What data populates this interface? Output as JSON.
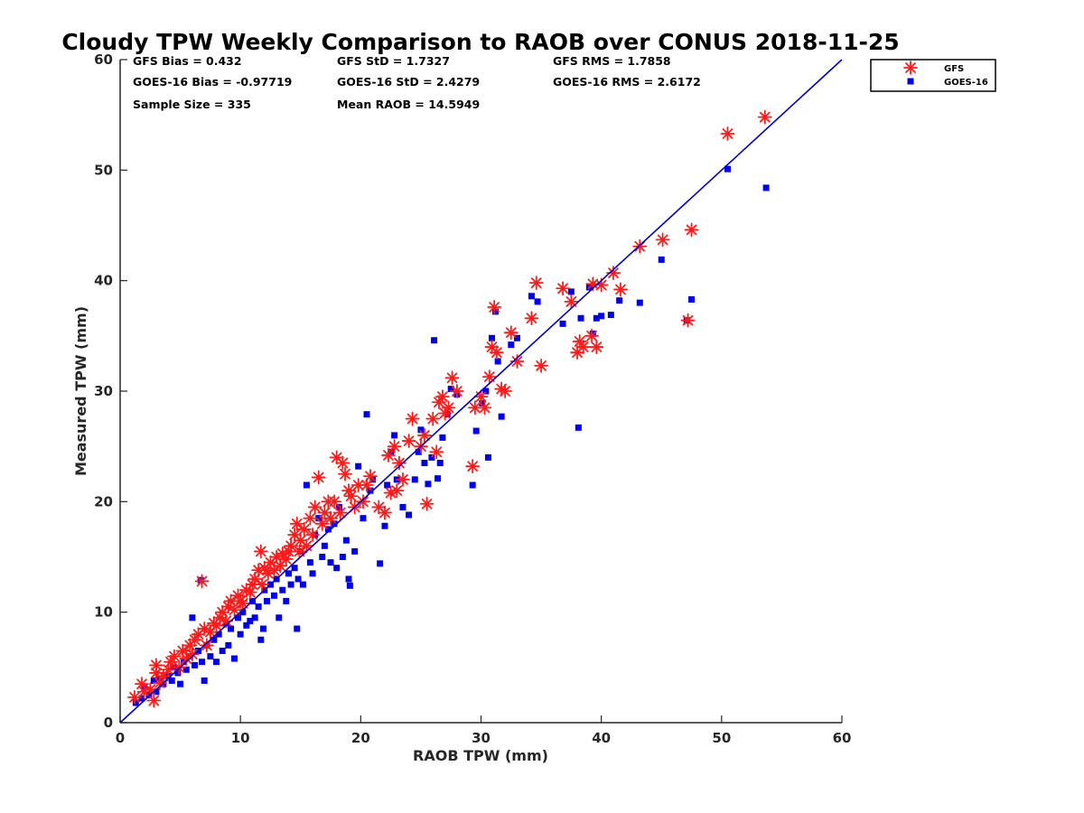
{
  "chart_data": {
    "type": "scatter",
    "title": "Cloudy TPW Weekly Comparison to RAOB over CONUS 2018-11-25",
    "xlabel": "RAOB TPW (mm)",
    "ylabel": "Measured TPW (mm)",
    "xlim": [
      0,
      60
    ],
    "ylim": [
      0,
      60
    ],
    "xticks": [
      "0",
      "10",
      "20",
      "30",
      "40",
      "50",
      "60"
    ],
    "yticks": [
      "0",
      "10",
      "20",
      "30",
      "40",
      "50",
      "60"
    ],
    "grid": false,
    "legend_position": "top-right-outside",
    "stats": {
      "gfs_bias": "GFS Bias = 0.432",
      "gfs_std": "GFS StD = 1.7327",
      "gfs_rms": "GFS RMS = 1.7858",
      "goes_bias": "GOES-16 Bias = -0.97719",
      "goes_std": "GOES-16 StD = 2.4279",
      "goes_rms": "GOES-16 RMS = 2.6172",
      "sample_size": "Sample Size = 335",
      "mean_raob": "Mean RAOB = 14.5949"
    },
    "reference_line": {
      "from": [
        0,
        0
      ],
      "to": [
        60,
        60
      ],
      "color": "#0000cc"
    },
    "series": [
      {
        "name": "GFS",
        "marker": "asterisk",
        "color": "#ff1a1a",
        "points": [
          [
            1.2,
            2.3
          ],
          [
            1.8,
            3.5
          ],
          [
            2.0,
            2.8
          ],
          [
            2.5,
            3.0
          ],
          [
            2.8,
            2.0
          ],
          [
            3.0,
            4.5
          ],
          [
            3.0,
            5.2
          ],
          [
            3.3,
            3.6
          ],
          [
            3.6,
            4.2
          ],
          [
            4.0,
            4.8
          ],
          [
            4.2,
            5.5
          ],
          [
            4.5,
            6.0
          ],
          [
            4.9,
            5.0
          ],
          [
            5.2,
            6.5
          ],
          [
            5.5,
            5.8
          ],
          [
            5.8,
            7.0
          ],
          [
            6.0,
            6.2
          ],
          [
            6.2,
            7.5
          ],
          [
            6.5,
            8.0
          ],
          [
            6.8,
            12.8
          ],
          [
            7.0,
            8.5
          ],
          [
            7.2,
            7.0
          ],
          [
            7.5,
            8.2
          ],
          [
            7.8,
            9.0
          ],
          [
            8.0,
            8.8
          ],
          [
            8.3,
            9.5
          ],
          [
            8.5,
            10.0
          ],
          [
            8.8,
            9.2
          ],
          [
            9.0,
            10.5
          ],
          [
            9.2,
            11.0
          ],
          [
            9.5,
            10.2
          ],
          [
            9.8,
            11.5
          ],
          [
            10.0,
            11.0
          ],
          [
            10.2,
            10.8
          ],
          [
            10.5,
            12.0
          ],
          [
            10.8,
            11.8
          ],
          [
            11.0,
            12.5
          ],
          [
            11.2,
            13.0
          ],
          [
            11.5,
            13.8
          ],
          [
            11.7,
            15.5
          ],
          [
            11.8,
            12.5
          ],
          [
            12.0,
            14.0
          ],
          [
            12.3,
            13.5
          ],
          [
            12.5,
            14.5
          ],
          [
            12.8,
            13.8
          ],
          [
            13.0,
            15.0
          ],
          [
            13.3,
            14.2
          ],
          [
            13.5,
            15.3
          ],
          [
            13.8,
            14.8
          ],
          [
            14.0,
            15.5
          ],
          [
            14.2,
            16.0
          ],
          [
            14.5,
            17.0
          ],
          [
            14.7,
            18.0
          ],
          [
            14.9,
            15.5
          ],
          [
            15.0,
            16.5
          ],
          [
            15.3,
            17.5
          ],
          [
            15.5,
            16.0
          ],
          [
            15.8,
            18.5
          ],
          [
            16.0,
            17.0
          ],
          [
            16.2,
            19.5
          ],
          [
            16.5,
            22.2
          ],
          [
            16.8,
            18.0
          ],
          [
            17.0,
            19.0
          ],
          [
            17.3,
            20.0
          ],
          [
            17.5,
            18.5
          ],
          [
            17.8,
            20.0
          ],
          [
            18.0,
            24.0
          ],
          [
            18.3,
            19.0
          ],
          [
            18.5,
            23.5
          ],
          [
            18.7,
            22.5
          ],
          [
            19.0,
            21.0
          ],
          [
            19.2,
            20.5
          ],
          [
            19.5,
            19.5
          ],
          [
            19.8,
            21.5
          ],
          [
            20.2,
            20.0
          ],
          [
            20.5,
            21.5
          ],
          [
            20.8,
            22.3
          ],
          [
            21.5,
            19.5
          ],
          [
            22.0,
            19.0
          ],
          [
            22.3,
            24.2
          ],
          [
            22.5,
            20.8
          ],
          [
            22.8,
            25.0
          ],
          [
            23.0,
            21.0
          ],
          [
            23.2,
            23.5
          ],
          [
            23.5,
            22.0
          ],
          [
            24.0,
            25.5
          ],
          [
            24.3,
            27.5
          ],
          [
            25.0,
            25.0
          ],
          [
            25.3,
            26.0
          ],
          [
            25.5,
            19.8
          ],
          [
            26.0,
            27.5
          ],
          [
            26.3,
            24.5
          ],
          [
            26.5,
            29.0
          ],
          [
            26.8,
            29.5
          ],
          [
            27.0,
            28.0
          ],
          [
            27.3,
            28.5
          ],
          [
            27.6,
            31.2
          ],
          [
            28.0,
            30.0
          ],
          [
            29.3,
            23.2
          ],
          [
            29.5,
            28.5
          ],
          [
            30.0,
            29.5
          ],
          [
            30.3,
            28.5
          ],
          [
            30.7,
            31.3
          ],
          [
            30.9,
            34.0
          ],
          [
            31.1,
            37.6
          ],
          [
            31.3,
            33.5
          ],
          [
            31.7,
            30.2
          ],
          [
            32.0,
            30.0
          ],
          [
            32.5,
            35.3
          ],
          [
            33.0,
            32.7
          ],
          [
            34.2,
            36.6
          ],
          [
            34.6,
            39.8
          ],
          [
            35.0,
            32.3
          ],
          [
            36.8,
            39.3
          ],
          [
            37.5,
            38.1
          ],
          [
            38.0,
            33.5
          ],
          [
            38.2,
            34.5
          ],
          [
            38.5,
            34.0
          ],
          [
            39.2,
            35.0
          ],
          [
            39.6,
            34.0
          ],
          [
            39.3,
            39.7
          ],
          [
            40.0,
            39.6
          ],
          [
            41.0,
            40.7
          ],
          [
            41.6,
            39.2
          ],
          [
            43.2,
            43.1
          ],
          [
            45.1,
            43.7
          ],
          [
            47.2,
            36.4
          ],
          [
            47.5,
            44.6
          ],
          [
            50.5,
            53.3
          ],
          [
            53.6,
            54.8
          ]
        ]
      },
      {
        "name": "GOES-16",
        "marker": "square",
        "color": "#0000ee",
        "points": [
          [
            1.3,
            1.8
          ],
          [
            1.8,
            2.2
          ],
          [
            2.0,
            3.2
          ],
          [
            2.4,
            2.5
          ],
          [
            2.8,
            3.8
          ],
          [
            3.0,
            2.8
          ],
          [
            3.3,
            4.0
          ],
          [
            3.6,
            3.5
          ],
          [
            4.0,
            4.2
          ],
          [
            4.3,
            3.8
          ],
          [
            4.5,
            5.0
          ],
          [
            4.8,
            4.5
          ],
          [
            5.0,
            3.5
          ],
          [
            5.3,
            5.5
          ],
          [
            5.5,
            4.8
          ],
          [
            5.8,
            6.0
          ],
          [
            6.0,
            9.5
          ],
          [
            6.2,
            5.2
          ],
          [
            6.5,
            6.5
          ],
          [
            6.7,
            12.9
          ],
          [
            6.8,
            5.5
          ],
          [
            7.0,
            3.8
          ],
          [
            7.2,
            7.0
          ],
          [
            7.5,
            6.0
          ],
          [
            7.8,
            7.5
          ],
          [
            8.0,
            5.5
          ],
          [
            8.2,
            8.0
          ],
          [
            8.5,
            6.5
          ],
          [
            8.8,
            9.0
          ],
          [
            9.0,
            7.0
          ],
          [
            9.2,
            8.5
          ],
          [
            9.5,
            5.8
          ],
          [
            9.8,
            9.5
          ],
          [
            10.0,
            8.0
          ],
          [
            10.2,
            10.0
          ],
          [
            10.5,
            8.8
          ],
          [
            10.8,
            9.2
          ],
          [
            11.0,
            11.0
          ],
          [
            11.2,
            9.5
          ],
          [
            11.5,
            10.5
          ],
          [
            11.7,
            7.5
          ],
          [
            11.9,
            8.5
          ],
          [
            12.0,
            12.0
          ],
          [
            12.2,
            11.0
          ],
          [
            12.5,
            12.5
          ],
          [
            12.8,
            11.5
          ],
          [
            13.0,
            13.0
          ],
          [
            13.2,
            9.5
          ],
          [
            13.5,
            12.0
          ],
          [
            13.8,
            11.0
          ],
          [
            14.0,
            13.5
          ],
          [
            14.2,
            12.5
          ],
          [
            14.5,
            14.0
          ],
          [
            14.7,
            8.5
          ],
          [
            14.8,
            13.0
          ],
          [
            15.0,
            15.5
          ],
          [
            15.2,
            12.5
          ],
          [
            15.5,
            21.5
          ],
          [
            15.8,
            14.5
          ],
          [
            16.0,
            13.5
          ],
          [
            16.2,
            17.0
          ],
          [
            16.5,
            18.5
          ],
          [
            16.8,
            15.0
          ],
          [
            17.0,
            16.0
          ],
          [
            17.3,
            17.5
          ],
          [
            17.5,
            14.5
          ],
          [
            17.8,
            18.0
          ],
          [
            18.0,
            14.0
          ],
          [
            18.2,
            19.5
          ],
          [
            18.5,
            15.0
          ],
          [
            18.8,
            16.5
          ],
          [
            19.0,
            13.0
          ],
          [
            19.1,
            12.4
          ],
          [
            19.5,
            15.5
          ],
          [
            19.8,
            23.2
          ],
          [
            20.2,
            18.5
          ],
          [
            20.5,
            27.9
          ],
          [
            20.8,
            21.0
          ],
          [
            21.0,
            22.0
          ],
          [
            21.6,
            14.4
          ],
          [
            22.0,
            17.8
          ],
          [
            22.2,
            21.5
          ],
          [
            22.5,
            24.5
          ],
          [
            22.8,
            26.0
          ],
          [
            23.0,
            22.0
          ],
          [
            23.5,
            19.5
          ],
          [
            24.0,
            18.8
          ],
          [
            24.5,
            22.0
          ],
          [
            24.8,
            24.5
          ],
          [
            25.0,
            26.5
          ],
          [
            25.3,
            23.5
          ],
          [
            25.6,
            21.6
          ],
          [
            25.9,
            24.0
          ],
          [
            26.1,
            34.6
          ],
          [
            26.4,
            22.1
          ],
          [
            26.6,
            23.5
          ],
          [
            26.8,
            25.8
          ],
          [
            27.2,
            27.9
          ],
          [
            27.5,
            30.2
          ],
          [
            28.0,
            29.7
          ],
          [
            29.3,
            21.5
          ],
          [
            29.6,
            26.4
          ],
          [
            30.1,
            28.9
          ],
          [
            30.4,
            30.0
          ],
          [
            30.6,
            24.0
          ],
          [
            30.9,
            34.8
          ],
          [
            31.2,
            37.2
          ],
          [
            31.4,
            32.7
          ],
          [
            31.7,
            27.7
          ],
          [
            32.5,
            34.2
          ],
          [
            33.0,
            34.8
          ],
          [
            34.2,
            38.6
          ],
          [
            34.7,
            38.1
          ],
          [
            36.8,
            36.1
          ],
          [
            37.5,
            39.0
          ],
          [
            38.1,
            26.7
          ],
          [
            38.3,
            36.6
          ],
          [
            39.0,
            39.4
          ],
          [
            39.3,
            35.2
          ],
          [
            39.6,
            36.6
          ],
          [
            40.0,
            36.8
          ],
          [
            40.8,
            36.9
          ],
          [
            41.5,
            38.2
          ],
          [
            43.2,
            38.0
          ],
          [
            45.0,
            41.9
          ],
          [
            47.1,
            36.4
          ],
          [
            47.5,
            38.3
          ],
          [
            50.5,
            50.1
          ],
          [
            53.7,
            48.4
          ]
        ]
      }
    ]
  }
}
